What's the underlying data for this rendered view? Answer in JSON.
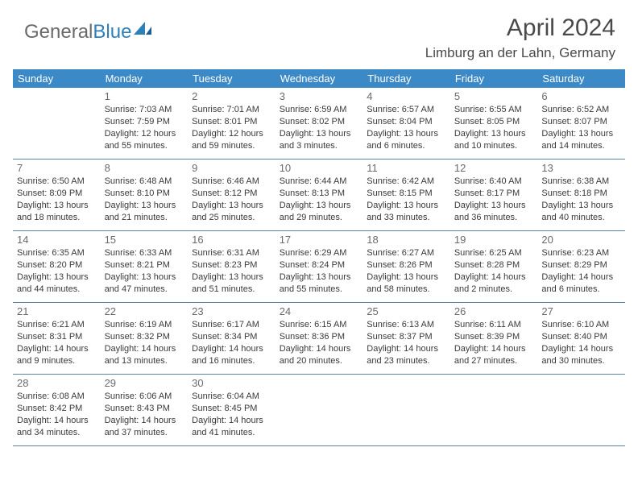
{
  "brand": {
    "part1": "General",
    "part2": "Blue"
  },
  "title": "April 2024",
  "location": "Limburg an der Lahn, Germany",
  "colors": {
    "header_bg": "#3b89c6",
    "header_text": "#ffffff",
    "rule": "#5e84a5",
    "daynum": "#6a6a6a",
    "body_text": "#3a3a3a",
    "logo_gray": "#6a6a6a",
    "logo_blue": "#2f7fb8"
  },
  "day_names": [
    "Sunday",
    "Monday",
    "Tuesday",
    "Wednesday",
    "Thursday",
    "Friday",
    "Saturday"
  ],
  "weeks": [
    [
      {
        "n": "",
        "sunrise": "",
        "sunset": "",
        "daylight": ""
      },
      {
        "n": "1",
        "sunrise": "Sunrise: 7:03 AM",
        "sunset": "Sunset: 7:59 PM",
        "daylight": "Daylight: 12 hours and 55 minutes."
      },
      {
        "n": "2",
        "sunrise": "Sunrise: 7:01 AM",
        "sunset": "Sunset: 8:01 PM",
        "daylight": "Daylight: 12 hours and 59 minutes."
      },
      {
        "n": "3",
        "sunrise": "Sunrise: 6:59 AM",
        "sunset": "Sunset: 8:02 PM",
        "daylight": "Daylight: 13 hours and 3 minutes."
      },
      {
        "n": "4",
        "sunrise": "Sunrise: 6:57 AM",
        "sunset": "Sunset: 8:04 PM",
        "daylight": "Daylight: 13 hours and 6 minutes."
      },
      {
        "n": "5",
        "sunrise": "Sunrise: 6:55 AM",
        "sunset": "Sunset: 8:05 PM",
        "daylight": "Daylight: 13 hours and 10 minutes."
      },
      {
        "n": "6",
        "sunrise": "Sunrise: 6:52 AM",
        "sunset": "Sunset: 8:07 PM",
        "daylight": "Daylight: 13 hours and 14 minutes."
      }
    ],
    [
      {
        "n": "7",
        "sunrise": "Sunrise: 6:50 AM",
        "sunset": "Sunset: 8:09 PM",
        "daylight": "Daylight: 13 hours and 18 minutes."
      },
      {
        "n": "8",
        "sunrise": "Sunrise: 6:48 AM",
        "sunset": "Sunset: 8:10 PM",
        "daylight": "Daylight: 13 hours and 21 minutes."
      },
      {
        "n": "9",
        "sunrise": "Sunrise: 6:46 AM",
        "sunset": "Sunset: 8:12 PM",
        "daylight": "Daylight: 13 hours and 25 minutes."
      },
      {
        "n": "10",
        "sunrise": "Sunrise: 6:44 AM",
        "sunset": "Sunset: 8:13 PM",
        "daylight": "Daylight: 13 hours and 29 minutes."
      },
      {
        "n": "11",
        "sunrise": "Sunrise: 6:42 AM",
        "sunset": "Sunset: 8:15 PM",
        "daylight": "Daylight: 13 hours and 33 minutes."
      },
      {
        "n": "12",
        "sunrise": "Sunrise: 6:40 AM",
        "sunset": "Sunset: 8:17 PM",
        "daylight": "Daylight: 13 hours and 36 minutes."
      },
      {
        "n": "13",
        "sunrise": "Sunrise: 6:38 AM",
        "sunset": "Sunset: 8:18 PM",
        "daylight": "Daylight: 13 hours and 40 minutes."
      }
    ],
    [
      {
        "n": "14",
        "sunrise": "Sunrise: 6:35 AM",
        "sunset": "Sunset: 8:20 PM",
        "daylight": "Daylight: 13 hours and 44 minutes."
      },
      {
        "n": "15",
        "sunrise": "Sunrise: 6:33 AM",
        "sunset": "Sunset: 8:21 PM",
        "daylight": "Daylight: 13 hours and 47 minutes."
      },
      {
        "n": "16",
        "sunrise": "Sunrise: 6:31 AM",
        "sunset": "Sunset: 8:23 PM",
        "daylight": "Daylight: 13 hours and 51 minutes."
      },
      {
        "n": "17",
        "sunrise": "Sunrise: 6:29 AM",
        "sunset": "Sunset: 8:24 PM",
        "daylight": "Daylight: 13 hours and 55 minutes."
      },
      {
        "n": "18",
        "sunrise": "Sunrise: 6:27 AM",
        "sunset": "Sunset: 8:26 PM",
        "daylight": "Daylight: 13 hours and 58 minutes."
      },
      {
        "n": "19",
        "sunrise": "Sunrise: 6:25 AM",
        "sunset": "Sunset: 8:28 PM",
        "daylight": "Daylight: 14 hours and 2 minutes."
      },
      {
        "n": "20",
        "sunrise": "Sunrise: 6:23 AM",
        "sunset": "Sunset: 8:29 PM",
        "daylight": "Daylight: 14 hours and 6 minutes."
      }
    ],
    [
      {
        "n": "21",
        "sunrise": "Sunrise: 6:21 AM",
        "sunset": "Sunset: 8:31 PM",
        "daylight": "Daylight: 14 hours and 9 minutes."
      },
      {
        "n": "22",
        "sunrise": "Sunrise: 6:19 AM",
        "sunset": "Sunset: 8:32 PM",
        "daylight": "Daylight: 14 hours and 13 minutes."
      },
      {
        "n": "23",
        "sunrise": "Sunrise: 6:17 AM",
        "sunset": "Sunset: 8:34 PM",
        "daylight": "Daylight: 14 hours and 16 minutes."
      },
      {
        "n": "24",
        "sunrise": "Sunrise: 6:15 AM",
        "sunset": "Sunset: 8:36 PM",
        "daylight": "Daylight: 14 hours and 20 minutes."
      },
      {
        "n": "25",
        "sunrise": "Sunrise: 6:13 AM",
        "sunset": "Sunset: 8:37 PM",
        "daylight": "Daylight: 14 hours and 23 minutes."
      },
      {
        "n": "26",
        "sunrise": "Sunrise: 6:11 AM",
        "sunset": "Sunset: 8:39 PM",
        "daylight": "Daylight: 14 hours and 27 minutes."
      },
      {
        "n": "27",
        "sunrise": "Sunrise: 6:10 AM",
        "sunset": "Sunset: 8:40 PM",
        "daylight": "Daylight: 14 hours and 30 minutes."
      }
    ],
    [
      {
        "n": "28",
        "sunrise": "Sunrise: 6:08 AM",
        "sunset": "Sunset: 8:42 PM",
        "daylight": "Daylight: 14 hours and 34 minutes."
      },
      {
        "n": "29",
        "sunrise": "Sunrise: 6:06 AM",
        "sunset": "Sunset: 8:43 PM",
        "daylight": "Daylight: 14 hours and 37 minutes."
      },
      {
        "n": "30",
        "sunrise": "Sunrise: 6:04 AM",
        "sunset": "Sunset: 8:45 PM",
        "daylight": "Daylight: 14 hours and 41 minutes."
      },
      {
        "n": "",
        "sunrise": "",
        "sunset": "",
        "daylight": ""
      },
      {
        "n": "",
        "sunrise": "",
        "sunset": "",
        "daylight": ""
      },
      {
        "n": "",
        "sunrise": "",
        "sunset": "",
        "daylight": ""
      },
      {
        "n": "",
        "sunrise": "",
        "sunset": "",
        "daylight": ""
      }
    ]
  ]
}
